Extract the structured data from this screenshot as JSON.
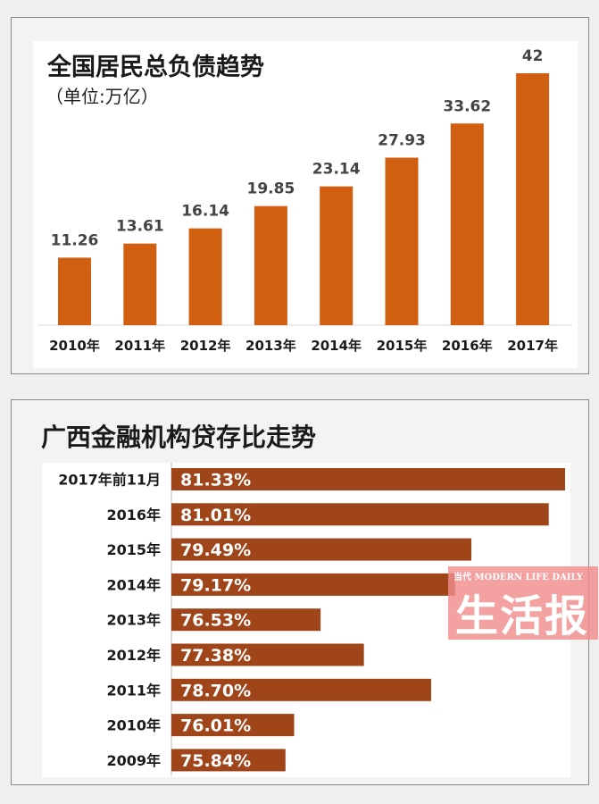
{
  "chart_data": [
    {
      "type": "bar",
      "title": "全国居民总负债趋势",
      "subtitle": "（单位:万亿）",
      "categories": [
        "2010年",
        "2011年",
        "2012年",
        "2013年",
        "2014年",
        "2015年",
        "2016年",
        "2017年"
      ],
      "values": [
        11.26,
        13.61,
        16.14,
        19.85,
        23.14,
        27.93,
        33.62,
        42
      ],
      "value_labels": [
        "11.26",
        "13.61",
        "16.14",
        "19.85",
        "23.14",
        "27.93",
        "33.62",
        "42"
      ],
      "ylim": [
        0,
        42
      ],
      "bar_color": "#d15f12",
      "grid": false
    },
    {
      "type": "bar",
      "orientation": "horizontal",
      "title": "广西金融机构贷存比走势",
      "categories": [
        "2017年前11月",
        "2016年",
        "2015年",
        "2014年",
        "2013年",
        "2012年",
        "2011年",
        "2010年",
        "2009年"
      ],
      "values": [
        81.33,
        81.01,
        79.49,
        79.17,
        76.53,
        77.38,
        78.7,
        76.01,
        75.84
      ],
      "value_labels": [
        "81.33%",
        "81.01%",
        "79.49%",
        "79.17%",
        "76.53%",
        "77.38%",
        "78.70%",
        "76.01%",
        "75.84%"
      ],
      "xlim": [
        73.6,
        81.33
      ],
      "bar_color": "#a0441a",
      "grid": false
    }
  ],
  "watermark": {
    "small_text": "当代 MODERN LIFE DAILY",
    "main_text": "生活报",
    "color": "#f08c8c"
  }
}
